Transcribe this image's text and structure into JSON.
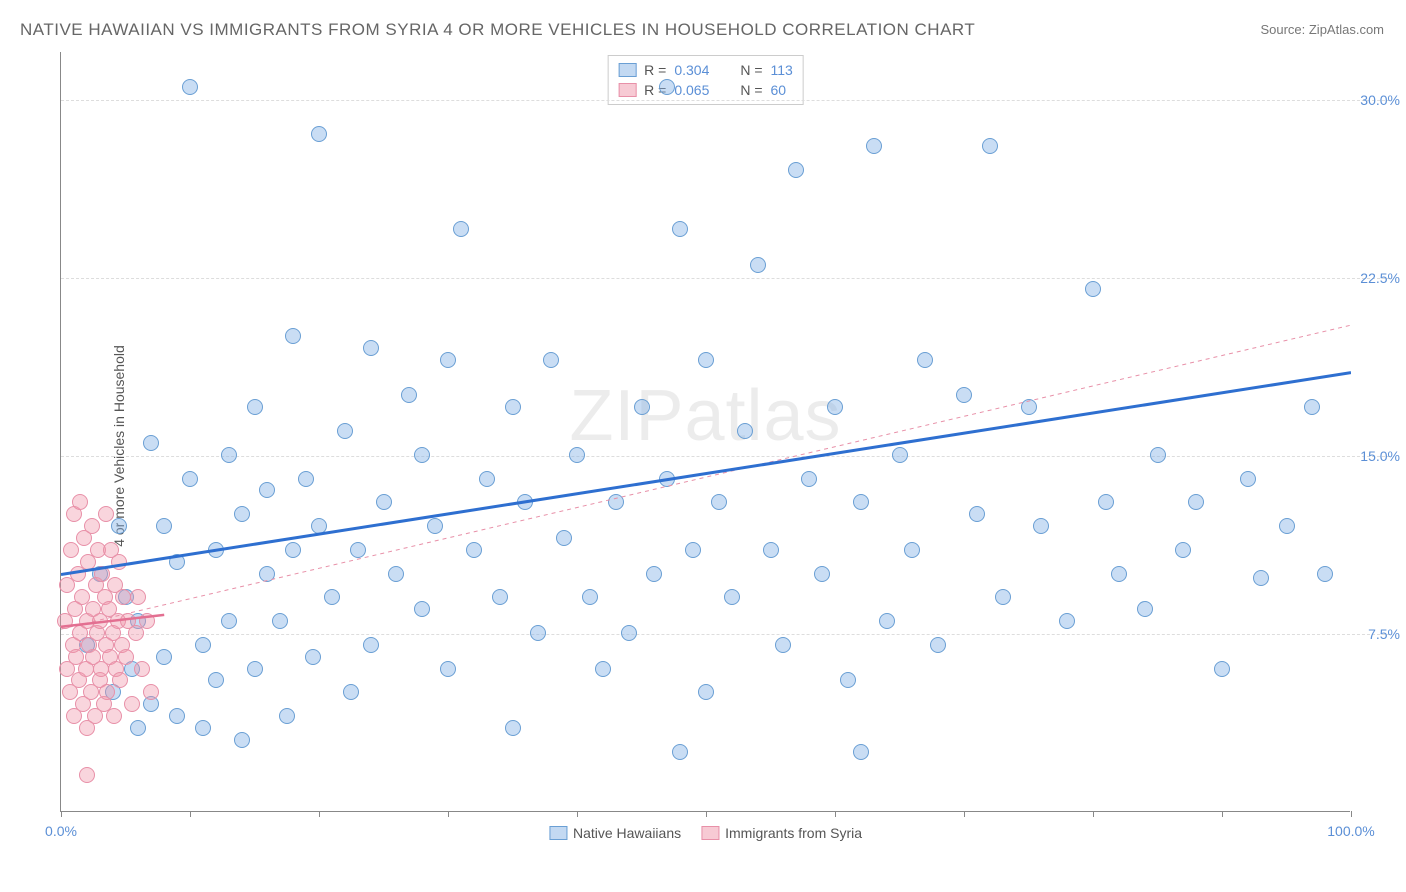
{
  "title": "NATIVE HAWAIIAN VS IMMIGRANTS FROM SYRIA 4 OR MORE VEHICLES IN HOUSEHOLD CORRELATION CHART",
  "source": "Source: ZipAtlas.com",
  "watermark": "ZIPatlas",
  "y_axis_label": "4 or more Vehicles in Household",
  "chart": {
    "type": "scatter",
    "xlim": [
      0,
      100
    ],
    "ylim": [
      0,
      32
    ],
    "x_ticks": [
      0,
      10,
      20,
      30,
      40,
      50,
      60,
      70,
      80,
      90,
      100
    ],
    "x_tick_labels": {
      "0": "0.0%",
      "100": "100.0%"
    },
    "y_ticks": [
      7.5,
      15.0,
      22.5,
      30.0
    ],
    "y_tick_labels": [
      "7.5%",
      "15.0%",
      "22.5%",
      "30.0%"
    ],
    "grid_color": "#dddddd",
    "background_color": "#ffffff",
    "axis_color": "#888888",
    "series": [
      {
        "name": "Native Hawaiians",
        "color_fill": "rgba(135,180,230,0.45)",
        "color_stroke": "#6a9fd4",
        "marker_radius": 8,
        "r": 0.304,
        "n": 113,
        "trend": {
          "x1": 0,
          "y1": 10.0,
          "x2": 100,
          "y2": 18.5,
          "color": "#2e6fd0",
          "width": 3,
          "dash": "none"
        },
        "trend_ext": {
          "x1": 0,
          "y1": 7.7,
          "x2": 100,
          "y2": 20.5,
          "color": "#e890a8",
          "width": 1,
          "dash": "4,4"
        },
        "points": [
          [
            2,
            7
          ],
          [
            3,
            10
          ],
          [
            4,
            5
          ],
          [
            4.5,
            12
          ],
          [
            5,
            9
          ],
          [
            5.5,
            6
          ],
          [
            6,
            3.5
          ],
          [
            6,
            8
          ],
          [
            7,
            15.5
          ],
          [
            7,
            4.5
          ],
          [
            8,
            12
          ],
          [
            8,
            6.5
          ],
          [
            9,
            10.5
          ],
          [
            9,
            4
          ],
          [
            10,
            30.5
          ],
          [
            10,
            14
          ],
          [
            11,
            7
          ],
          [
            11,
            3.5
          ],
          [
            12,
            11
          ],
          [
            12,
            5.5
          ],
          [
            13,
            15
          ],
          [
            13,
            8
          ],
          [
            14,
            12.5
          ],
          [
            14,
            3
          ],
          [
            15,
            17
          ],
          [
            15,
            6
          ],
          [
            16,
            10
          ],
          [
            16,
            13.5
          ],
          [
            17,
            8
          ],
          [
            17.5,
            4
          ],
          [
            18,
            20
          ],
          [
            18,
            11
          ],
          [
            19,
            14
          ],
          [
            19.5,
            6.5
          ],
          [
            20,
            28.5
          ],
          [
            20,
            12
          ],
          [
            21,
            9
          ],
          [
            22,
            16
          ],
          [
            22.5,
            5
          ],
          [
            23,
            11
          ],
          [
            24,
            19.5
          ],
          [
            24,
            7
          ],
          [
            25,
            13
          ],
          [
            26,
            10
          ],
          [
            27,
            17.5
          ],
          [
            28,
            8.5
          ],
          [
            28,
            15
          ],
          [
            29,
            12
          ],
          [
            30,
            19
          ],
          [
            30,
            6
          ],
          [
            31,
            24.5
          ],
          [
            32,
            11
          ],
          [
            33,
            14
          ],
          [
            34,
            9
          ],
          [
            35,
            17
          ],
          [
            36,
            13
          ],
          [
            37,
            7.5
          ],
          [
            38,
            19
          ],
          [
            39,
            11.5
          ],
          [
            40,
            15
          ],
          [
            41,
            9
          ],
          [
            42,
            6
          ],
          [
            43,
            13
          ],
          [
            44,
            7.5
          ],
          [
            45,
            17
          ],
          [
            46,
            10
          ],
          [
            47,
            30.5
          ],
          [
            47,
            14
          ],
          [
            48,
            2.5
          ],
          [
            49,
            11
          ],
          [
            50,
            19
          ],
          [
            50,
            5
          ],
          [
            51,
            13
          ],
          [
            52,
            9
          ],
          [
            53,
            16
          ],
          [
            54,
            23
          ],
          [
            55,
            11
          ],
          [
            56,
            7
          ],
          [
            57,
            27
          ],
          [
            58,
            14
          ],
          [
            59,
            10
          ],
          [
            60,
            17
          ],
          [
            61,
            5.5
          ],
          [
            62,
            13
          ],
          [
            63,
            28
          ],
          [
            64,
            8
          ],
          [
            65,
            15
          ],
          [
            66,
            11
          ],
          [
            67,
            19
          ],
          [
            68,
            7
          ],
          [
            70,
            17.5
          ],
          [
            71,
            12.5
          ],
          [
            72,
            28
          ],
          [
            73,
            9
          ],
          [
            75,
            17
          ],
          [
            76,
            12
          ],
          [
            78,
            8
          ],
          [
            80,
            22
          ],
          [
            81,
            13
          ],
          [
            82,
            10
          ],
          [
            84,
            8.5
          ],
          [
            85,
            15
          ],
          [
            87,
            11
          ],
          [
            88,
            13
          ],
          [
            90,
            6
          ],
          [
            92,
            14
          ],
          [
            93,
            9.8
          ],
          [
            95,
            12
          ],
          [
            97,
            17
          ],
          [
            98,
            10
          ],
          [
            62,
            2.5
          ],
          [
            48,
            24.5
          ],
          [
            35,
            3.5
          ]
        ]
      },
      {
        "name": "Immigrants from Syria",
        "color_fill": "rgba(240,150,170,0.40)",
        "color_stroke": "#e890a8",
        "marker_radius": 8,
        "r": 0.065,
        "n": 60,
        "trend": {
          "x1": 0,
          "y1": 7.8,
          "x2": 8,
          "y2": 8.3,
          "color": "#e36f91",
          "width": 2.5,
          "dash": "none"
        },
        "points": [
          [
            0.3,
            8
          ],
          [
            0.5,
            6
          ],
          [
            0.5,
            9.5
          ],
          [
            0.7,
            5
          ],
          [
            0.8,
            11
          ],
          [
            0.9,
            7
          ],
          [
            1.0,
            4
          ],
          [
            1.0,
            12.5
          ],
          [
            1.1,
            8.5
          ],
          [
            1.2,
            6.5
          ],
          [
            1.3,
            10
          ],
          [
            1.4,
            5.5
          ],
          [
            1.5,
            13
          ],
          [
            1.5,
            7.5
          ],
          [
            1.6,
            9
          ],
          [
            1.7,
            4.5
          ],
          [
            1.8,
            11.5
          ],
          [
            1.9,
            6
          ],
          [
            2.0,
            8
          ],
          [
            2.0,
            3.5
          ],
          [
            2.1,
            10.5
          ],
          [
            2.2,
            7
          ],
          [
            2.3,
            5
          ],
          [
            2.4,
            12
          ],
          [
            2.5,
            8.5
          ],
          [
            2.5,
            6.5
          ],
          [
            2.6,
            4
          ],
          [
            2.7,
            9.5
          ],
          [
            2.8,
            7.5
          ],
          [
            2.9,
            11
          ],
          [
            3.0,
            5.5
          ],
          [
            3.0,
            8
          ],
          [
            3.1,
            6
          ],
          [
            3.2,
            10
          ],
          [
            3.3,
            4.5
          ],
          [
            3.4,
            9
          ],
          [
            3.5,
            7
          ],
          [
            3.5,
            12.5
          ],
          [
            3.6,
            5
          ],
          [
            3.7,
            8.5
          ],
          [
            3.8,
            6.5
          ],
          [
            3.9,
            11
          ],
          [
            4.0,
            7.5
          ],
          [
            4.1,
            4
          ],
          [
            4.2,
            9.5
          ],
          [
            4.3,
            6
          ],
          [
            4.4,
            8
          ],
          [
            4.5,
            10.5
          ],
          [
            4.6,
            5.5
          ],
          [
            4.7,
            7
          ],
          [
            4.8,
            9
          ],
          [
            5.0,
            6.5
          ],
          [
            5.2,
            8
          ],
          [
            5.5,
            4.5
          ],
          [
            5.8,
            7.5
          ],
          [
            6.0,
            9
          ],
          [
            6.3,
            6
          ],
          [
            6.7,
            8
          ],
          [
            7.0,
            5
          ],
          [
            2.0,
            1.5
          ]
        ]
      }
    ]
  },
  "legend_top": [
    {
      "color": "blue",
      "r_label": "R =",
      "r_val": "0.304",
      "n_label": "N =",
      "n_val": "113"
    },
    {
      "color": "pink",
      "r_label": "R =",
      "r_val": "0.065",
      "n_label": "N =",
      "n_val": "60"
    }
  ],
  "legend_bottom": [
    {
      "color": "blue",
      "label": "Native Hawaiians"
    },
    {
      "color": "pink",
      "label": "Immigrants from Syria"
    }
  ]
}
